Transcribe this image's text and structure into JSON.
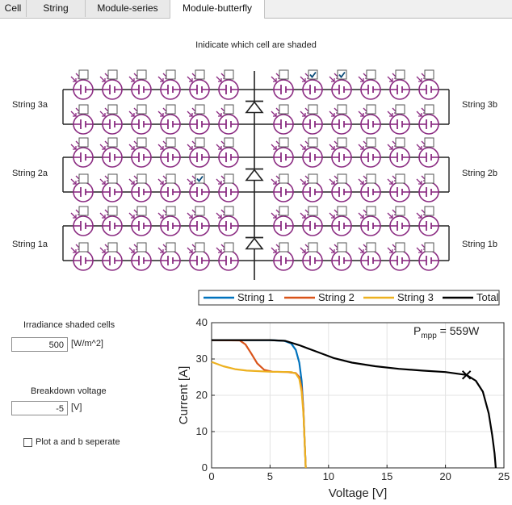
{
  "tabs": [
    {
      "label": "Cell",
      "active": false
    },
    {
      "label": "String",
      "active": false
    },
    {
      "label": "Module-series",
      "active": false
    },
    {
      "label": "Module-butterfly",
      "active": true
    }
  ],
  "module": {
    "title": "Inidicate which cell are shaded",
    "strings": [
      {
        "left": "String 3a",
        "right": "String 3b",
        "top_checked": [
          false,
          false,
          false,
          false,
          false,
          false,
          false,
          true,
          true,
          false,
          false,
          false
        ],
        "bottom_checked": [
          false,
          false,
          false,
          false,
          false,
          false,
          false,
          false,
          false,
          false,
          false,
          false
        ]
      },
      {
        "left": "String 2a",
        "right": "String 2b",
        "top_checked": [
          false,
          false,
          false,
          false,
          false,
          false,
          false,
          false,
          false,
          false,
          false,
          false
        ],
        "bottom_checked": [
          false,
          false,
          false,
          false,
          true,
          false,
          false,
          false,
          false,
          false,
          false,
          false
        ]
      },
      {
        "left": "String 1a",
        "right": "String 1b",
        "top_checked": [
          false,
          false,
          false,
          false,
          false,
          false,
          false,
          false,
          false,
          false,
          false,
          false
        ],
        "bottom_checked": [
          false,
          false,
          false,
          false,
          false,
          false,
          false,
          false,
          false,
          false,
          false,
          false
        ]
      }
    ],
    "colors": {
      "cell": "#8b2c82",
      "wire": "#222222",
      "check": "#0c4d7a"
    },
    "icons": {
      "cell": "solar-cell-icon",
      "diode": "bypass-diode-icon",
      "sun": "sunlight-arrows-icon"
    }
  },
  "controls": {
    "irradiance_label": "Irradiance shaded cells",
    "irradiance_value": "500",
    "irradiance_unit": "[W/m^2]",
    "breakdown_label": "Breakdown voltage",
    "breakdown_value": "-5",
    "breakdown_unit": "[V]",
    "plot_separate_label": "Plot a and b seperate",
    "plot_separate_checked": false
  },
  "chart_data": {
    "type": "line",
    "xlabel": "Voltage [V]",
    "ylabel": "Current [A]",
    "xlim": [
      0,
      25
    ],
    "ylim": [
      0,
      40
    ],
    "xticks": [
      0,
      5,
      10,
      15,
      20,
      25
    ],
    "yticks": [
      0,
      10,
      20,
      30,
      40
    ],
    "grid": true,
    "legend_position": "top",
    "annotation": {
      "text": "= 559W",
      "symbol": "P",
      "subscript": "mpp"
    },
    "mpp_point": {
      "x": 21.8,
      "y": 25.6
    },
    "series": [
      {
        "name": "String 1",
        "color": "#0072bd",
        "points": [
          [
            0,
            35.2
          ],
          [
            5,
            35.2
          ],
          [
            6.2,
            35.0
          ],
          [
            6.8,
            34.3
          ],
          [
            7.2,
            32.5
          ],
          [
            7.5,
            29
          ],
          [
            7.7,
            24
          ],
          [
            7.85,
            16
          ],
          [
            7.95,
            8
          ],
          [
            8.05,
            0
          ]
        ]
      },
      {
        "name": "String 2",
        "color": "#d95319",
        "points": [
          [
            0,
            35.2
          ],
          [
            2.4,
            35.1
          ],
          [
            2.9,
            34.0
          ],
          [
            3.4,
            31.5
          ],
          [
            3.9,
            28.8
          ],
          [
            4.5,
            27.0
          ],
          [
            5.2,
            26.5
          ],
          [
            6.5,
            26.4
          ],
          [
            7.2,
            26.1
          ],
          [
            7.5,
            25.0
          ],
          [
            7.7,
            22
          ],
          [
            7.85,
            16
          ],
          [
            7.95,
            8
          ],
          [
            8.05,
            0
          ]
        ]
      },
      {
        "name": "String 3",
        "color": "#edb120",
        "points": [
          [
            0,
            29.2
          ],
          [
            1,
            28.0
          ],
          [
            2,
            27.2
          ],
          [
            3,
            26.8
          ],
          [
            5,
            26.5
          ],
          [
            6.8,
            26.4
          ],
          [
            7.2,
            26.0
          ],
          [
            7.5,
            24.5
          ],
          [
            7.7,
            21
          ],
          [
            7.85,
            15
          ],
          [
            7.95,
            8
          ],
          [
            8.05,
            0
          ]
        ]
      },
      {
        "name": "Total",
        "color": "#000000",
        "points": [
          [
            0,
            35.2
          ],
          [
            5,
            35.2
          ],
          [
            6.3,
            35.0
          ],
          [
            7.5,
            33.8
          ],
          [
            9,
            32.0
          ],
          [
            10.5,
            30.2
          ],
          [
            12,
            29.0
          ],
          [
            14,
            28.0
          ],
          [
            16,
            27.3
          ],
          [
            18,
            26.8
          ],
          [
            20,
            26.4
          ],
          [
            21.8,
            25.6
          ],
          [
            22.6,
            24.0
          ],
          [
            23.2,
            21.0
          ],
          [
            23.7,
            15.0
          ],
          [
            24.0,
            9.0
          ],
          [
            24.2,
            4.0
          ],
          [
            24.3,
            0
          ]
        ]
      }
    ]
  }
}
